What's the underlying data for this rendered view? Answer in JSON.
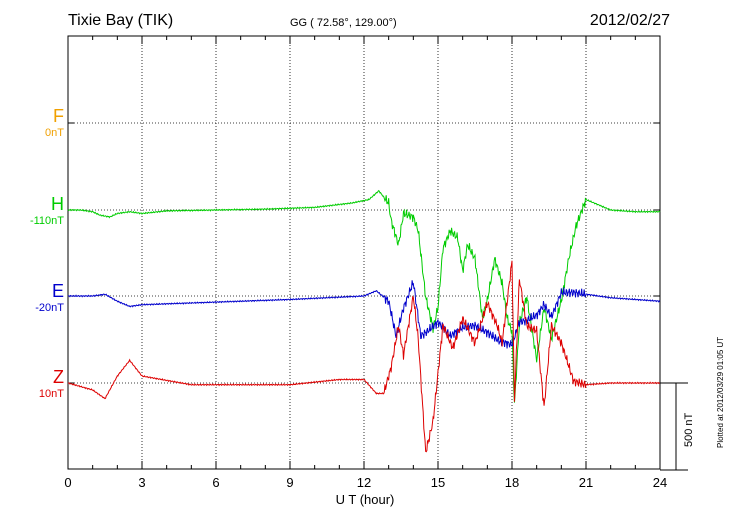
{
  "header": {
    "station": "Tixie Bay (TIK)",
    "coords": "GG ( 72.58°, 129.00°)",
    "date": "2012/02/27"
  },
  "components": [
    {
      "letter": "F",
      "base": "0nT",
      "color": "#f0a000"
    },
    {
      "letter": "H",
      "base": "-110nT",
      "color": "#00cc00"
    },
    {
      "letter": "E",
      "base": "-20nT",
      "color": "#0000cc"
    },
    {
      "letter": "Z",
      "base": "10nT",
      "color": "#dd0000"
    }
  ],
  "scale_bar": {
    "label": "500 nT"
  },
  "footer": {
    "plotted": "Plotted at 2012/03/29 01:05 UT"
  },
  "chart_data": {
    "type": "line",
    "xlabel": "U T (hour)",
    "xlim": [
      0,
      24
    ],
    "xticks": [
      "0",
      "3",
      "6",
      "9",
      "12",
      "15",
      "18",
      "21",
      "24"
    ],
    "unit": "nT",
    "series": [
      {
        "name": "H",
        "color": "#00cc00",
        "points": [
          [
            0,
            0
          ],
          [
            0.5,
            0
          ],
          [
            1,
            -10
          ],
          [
            1.3,
            -30
          ],
          [
            1.7,
            -40
          ],
          [
            2,
            -20
          ],
          [
            2.5,
            -10
          ],
          [
            3,
            -20
          ],
          [
            4,
            -5
          ],
          [
            6,
            0
          ],
          [
            8,
            5
          ],
          [
            10,
            15
          ],
          [
            11.5,
            40
          ],
          [
            12.2,
            60
          ],
          [
            12.6,
            110
          ],
          [
            13,
            40
          ],
          [
            13.1,
            -60
          ],
          [
            13.4,
            -200
          ],
          [
            13.6,
            -20
          ],
          [
            14,
            -40
          ],
          [
            14.2,
            -120
          ],
          [
            14.5,
            -500
          ],
          [
            14.8,
            -680
          ],
          [
            15,
            -560
          ],
          [
            15.2,
            -220
          ],
          [
            15.5,
            -120
          ],
          [
            15.8,
            -160
          ],
          [
            16,
            -350
          ],
          [
            16.2,
            -200
          ],
          [
            16.5,
            -280
          ],
          [
            16.8,
            -620
          ],
          [
            17,
            -520
          ],
          [
            17.3,
            -280
          ],
          [
            17.6,
            -420
          ],
          [
            17.8,
            -620
          ],
          [
            18,
            -700
          ],
          [
            18.1,
            -1120
          ],
          [
            18.3,
            -650
          ],
          [
            18.6,
            -500
          ],
          [
            19,
            -860
          ],
          [
            19.3,
            -560
          ],
          [
            19.6,
            -740
          ],
          [
            20,
            -520
          ],
          [
            20.3,
            -280
          ],
          [
            20.6,
            -90
          ],
          [
            21,
            60
          ],
          [
            21.5,
            30
          ],
          [
            22,
            0
          ],
          [
            23,
            -10
          ],
          [
            24,
            -10
          ]
        ]
      },
      {
        "name": "E",
        "color": "#0000cc",
        "points": [
          [
            0,
            0
          ],
          [
            1,
            0
          ],
          [
            1.5,
            10
          ],
          [
            2,
            -30
          ],
          [
            2.5,
            -60
          ],
          [
            3,
            -50
          ],
          [
            5,
            -40
          ],
          [
            9,
            -20
          ],
          [
            12,
            0
          ],
          [
            12.5,
            30
          ],
          [
            13,
            -30
          ],
          [
            13.3,
            -230
          ],
          [
            13.6,
            -70
          ],
          [
            14,
            80
          ],
          [
            14.3,
            -230
          ],
          [
            14.6,
            -200
          ],
          [
            15,
            -150
          ],
          [
            15.5,
            -230
          ],
          [
            16,
            -180
          ],
          [
            16.5,
            -170
          ],
          [
            17,
            -210
          ],
          [
            17.5,
            -260
          ],
          [
            18,
            -280
          ],
          [
            18.3,
            -150
          ],
          [
            18.6,
            -140
          ],
          [
            19,
            -110
          ],
          [
            19.3,
            -50
          ],
          [
            19.6,
            -120
          ],
          [
            20,
            20
          ],
          [
            20.5,
            20
          ],
          [
            21,
            10
          ],
          [
            22,
            -10
          ],
          [
            24,
            -30
          ]
        ]
      },
      {
        "name": "Z",
        "color": "#dd0000",
        "points": [
          [
            0,
            0
          ],
          [
            1,
            -40
          ],
          [
            1.5,
            -90
          ],
          [
            2,
            40
          ],
          [
            2.5,
            130
          ],
          [
            3,
            40
          ],
          [
            5,
            -10
          ],
          [
            9,
            -10
          ],
          [
            11,
            20
          ],
          [
            12,
            20
          ],
          [
            12.5,
            -60
          ],
          [
            12.8,
            -60
          ],
          [
            13.1,
            90
          ],
          [
            13.4,
            330
          ],
          [
            13.6,
            160
          ],
          [
            14,
            500
          ],
          [
            14.2,
            250
          ],
          [
            14.5,
            -400
          ],
          [
            14.8,
            -220
          ],
          [
            15.2,
            330
          ],
          [
            15.6,
            200
          ],
          [
            16,
            370
          ],
          [
            16.5,
            230
          ],
          [
            17,
            460
          ],
          [
            17.4,
            330
          ],
          [
            17.6,
            230
          ],
          [
            18,
            700
          ],
          [
            18.1,
            -100
          ],
          [
            18.3,
            600
          ],
          [
            18.6,
            330
          ],
          [
            19,
            300
          ],
          [
            19.3,
            -140
          ],
          [
            19.6,
            330
          ],
          [
            20,
            230
          ],
          [
            20.5,
            10
          ],
          [
            21,
            -10
          ],
          [
            22,
            0
          ],
          [
            24,
            0
          ]
        ]
      }
    ]
  }
}
